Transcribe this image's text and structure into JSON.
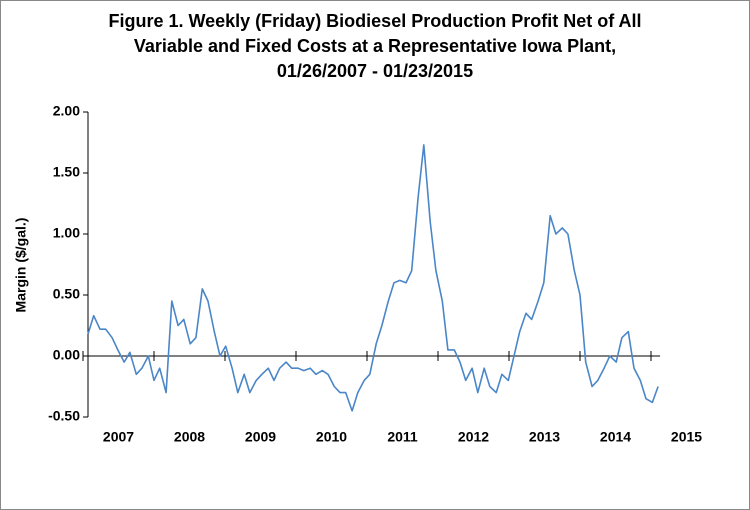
{
  "chart_data": {
    "type": "line",
    "title": [
      "Figure 1. Weekly (Friday) Biodiesel Production Profit Net of All",
      "Variable and Fixed Costs at a Representative Iowa Plant,",
      "01/26/2007  - 01/23/2015"
    ],
    "ylabel": "Margin ($/gal.)",
    "x": [
      2007.07,
      2007.15,
      2007.24,
      2007.32,
      2007.41,
      2007.49,
      2007.58,
      2007.66,
      2007.75,
      2007.83,
      2007.92,
      2008.0,
      2008.08,
      2008.17,
      2008.25,
      2008.34,
      2008.42,
      2008.51,
      2008.59,
      2008.68,
      2008.76,
      2008.85,
      2008.93,
      2009.01,
      2009.1,
      2009.18,
      2009.27,
      2009.35,
      2009.44,
      2009.52,
      2009.61,
      2009.69,
      2009.77,
      2009.86,
      2009.94,
      2010.03,
      2010.11,
      2010.2,
      2010.28,
      2010.37,
      2010.45,
      2010.54,
      2010.62,
      2010.7,
      2010.79,
      2010.87,
      2010.96,
      2011.04,
      2011.13,
      2011.21,
      2011.3,
      2011.38,
      2011.46,
      2011.55,
      2011.63,
      2011.72,
      2011.8,
      2011.89,
      2011.97,
      2012.06,
      2012.14,
      2012.23,
      2012.31,
      2012.39,
      2012.48,
      2012.56,
      2012.65,
      2012.73,
      2012.82,
      2012.9,
      2012.99,
      2013.07,
      2013.15,
      2013.24,
      2013.32,
      2013.41,
      2013.49,
      2013.58,
      2013.66,
      2013.75,
      2013.83,
      2013.92,
      2014.0,
      2014.08,
      2014.17,
      2014.25,
      2014.34,
      2014.42,
      2014.51,
      2014.59,
      2014.68,
      2014.76,
      2014.85,
      2014.93,
      2015.02,
      2015.1
    ],
    "series": [
      {
        "name": "Margin",
        "color": "#4a86c8",
        "values": [
          0.18,
          0.33,
          0.22,
          0.22,
          0.15,
          0.05,
          -0.05,
          0.03,
          -0.15,
          -0.1,
          0,
          -0.2,
          -0.1,
          -0.3,
          0.45,
          0.25,
          0.3,
          0.1,
          0.15,
          0.55,
          0.45,
          0.2,
          0,
          0.08,
          -0.1,
          -0.3,
          -0.15,
          -0.3,
          -0.2,
          -0.15,
          -0.1,
          -0.2,
          -0.1,
          -0.05,
          -0.1,
          -0.1,
          -0.12,
          -0.1,
          -0.15,
          -0.12,
          -0.15,
          -0.25,
          -0.3,
          -0.3,
          -0.45,
          -0.3,
          -0.2,
          -0.15,
          0.1,
          0.25,
          0.45,
          0.6,
          0.62,
          0.6,
          0.7,
          1.3,
          1.73,
          1.1,
          0.7,
          0.45,
          0.05,
          0.05,
          -0.05,
          -0.2,
          -0.1,
          -0.3,
          -0.1,
          -0.25,
          -0.3,
          -0.15,
          -0.2,
          0,
          0.2,
          0.35,
          0.3,
          0.45,
          0.6,
          1.15,
          1.0,
          1.05,
          1.0,
          0.7,
          0.5,
          -0.05,
          -0.25,
          -0.2,
          -0.1,
          0,
          -0.05,
          0.15,
          0.2,
          -0.1,
          -0.2,
          -0.35,
          -0.38,
          -0.25
        ]
      }
    ],
    "xlim": [
      2007,
      2016
    ],
    "xticks": [
      2007,
      2008,
      2009,
      2010,
      2011,
      2012,
      2013,
      2014,
      2015
    ],
    "ylim": [
      -0.5,
      2.0
    ],
    "yticks": [
      {
        "value": -0.5,
        "label": "-0.50"
      },
      {
        "value": 0,
        "label": "0.00"
      },
      {
        "value": 0.5,
        "label": "0.50"
      },
      {
        "value": 1.0,
        "label": "1.00"
      },
      {
        "value": 1.5,
        "label": "1.50"
      },
      {
        "value": 2.0,
        "label": "2.00"
      }
    ],
    "grid": false
  }
}
